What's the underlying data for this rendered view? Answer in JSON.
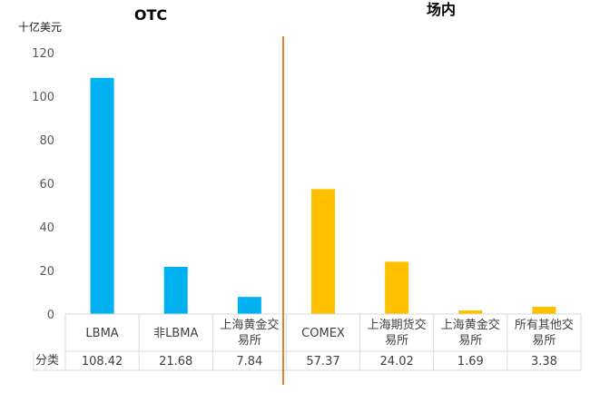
{
  "chart_data": {
    "type": "bar",
    "groups": [
      {
        "name": "OTC",
        "color": "#00B0F0"
      },
      {
        "name": "场内",
        "color": "#FFC000"
      }
    ],
    "y_unit": "十亿美元",
    "row_label": "分类",
    "ylim": [
      0,
      120
    ],
    "yticks": [
      0,
      20,
      40,
      60,
      80,
      100,
      120
    ],
    "grid": false,
    "categories": [
      {
        "label": [
          "LBMA"
        ],
        "value": 108.42,
        "value_label": "108.42",
        "group": 0
      },
      {
        "label": [
          "非LBMA"
        ],
        "value": 21.68,
        "value_label": "21.68",
        "group": 0
      },
      {
        "label": [
          "上海黄金交",
          "易所"
        ],
        "value": 7.84,
        "value_label": "7.84",
        "group": 0
      },
      {
        "label": [
          "COMEX"
        ],
        "value": 57.37,
        "value_label": "57.37",
        "group": 1
      },
      {
        "label": [
          "上海期货交",
          "易所"
        ],
        "value": 24.02,
        "value_label": "24.02",
        "group": 1
      },
      {
        "label": [
          "上海黄金交",
          "易所"
        ],
        "value": 1.69,
        "value_label": "1.69",
        "group": 1
      },
      {
        "label": [
          "所有其他交",
          "易所"
        ],
        "value": 3.38,
        "value_label": "3.38",
        "group": 1
      }
    ],
    "divider_color": "#ED7D31"
  }
}
